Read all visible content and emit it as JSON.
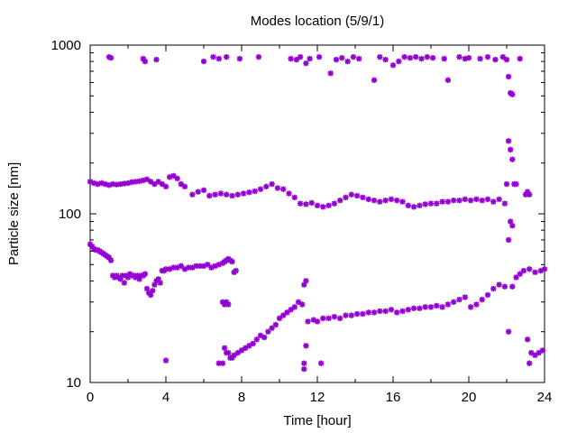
{
  "chart_data": {
    "type": "scatter",
    "title": "Modes location (5/9/1)",
    "xlabel": "Time [hour]",
    "ylabel": "Particle size [nm]",
    "xlim": [
      0,
      24
    ],
    "ylim": [
      10,
      1000
    ],
    "yscale": "log",
    "grid": false,
    "legend": "none",
    "xticks": [
      0,
      4,
      8,
      12,
      16,
      20,
      24
    ],
    "xtick_labels": [
      "0",
      "4",
      "8",
      "12",
      "16",
      "20",
      "24"
    ],
    "yticks": [
      10,
      100,
      1000
    ],
    "ytick_labels": [
      "10",
      "100",
      "1000"
    ],
    "marker_color": "#9400d3",
    "marker": "star",
    "series": [
      {
        "points": [
          [
            0.0,
            66
          ],
          [
            0.1,
            64
          ],
          [
            0.2,
            62
          ],
          [
            0.3,
            61
          ],
          [
            0.4,
            61
          ],
          [
            0.5,
            60
          ],
          [
            0.6,
            59
          ],
          [
            0.7,
            58
          ],
          [
            0.8,
            57
          ],
          [
            0.9,
            56
          ],
          [
            1.0,
            55
          ],
          [
            1.1,
            53
          ],
          [
            1.2,
            43
          ],
          [
            1.3,
            42
          ],
          [
            1.4,
            43
          ],
          [
            1.5,
            42
          ],
          [
            1.6,
            41
          ],
          [
            1.7,
            43
          ],
          [
            1.8,
            39
          ],
          [
            1.9,
            43
          ],
          [
            2.0,
            42
          ],
          [
            2.1,
            44
          ],
          [
            2.2,
            43
          ],
          [
            2.3,
            43
          ],
          [
            2.4,
            42
          ],
          [
            2.5,
            43
          ],
          [
            2.6,
            41
          ],
          [
            2.7,
            43
          ],
          [
            2.8,
            43
          ],
          [
            2.9,
            44
          ],
          [
            3.0,
            36
          ],
          [
            3.1,
            34
          ],
          [
            3.2,
            33
          ],
          [
            3.3,
            35
          ],
          [
            3.4,
            38
          ],
          [
            3.5,
            40
          ],
          [
            3.6,
            41
          ],
          [
            3.7,
            39
          ],
          [
            3.8,
            46
          ],
          [
            3.9,
            46
          ],
          [
            4.0,
            47
          ],
          [
            4.2,
            47
          ],
          [
            4.4,
            48
          ],
          [
            4.6,
            48
          ],
          [
            4.8,
            49
          ],
          [
            5.0,
            47
          ],
          [
            5.2,
            48
          ],
          [
            5.4,
            48
          ],
          [
            5.6,
            49
          ],
          [
            5.8,
            49
          ],
          [
            6.0,
            49
          ],
          [
            6.2,
            50
          ],
          [
            6.4,
            48
          ],
          [
            6.6,
            49
          ],
          [
            6.8,
            50
          ],
          [
            7.0,
            51
          ],
          [
            7.1,
            52
          ],
          [
            7.2,
            53
          ],
          [
            7.3,
            54
          ],
          [
            7.4,
            53
          ],
          [
            7.5,
            52
          ],
          [
            7.0,
            30
          ],
          [
            7.1,
            29
          ],
          [
            7.2,
            30
          ],
          [
            7.3,
            29
          ],
          [
            7.6,
            45
          ],
          [
            7.7,
            46
          ],
          [
            6.8,
            13
          ],
          [
            7.0,
            13
          ],
          [
            7.1,
            16
          ],
          [
            7.2,
            15
          ],
          [
            7.3,
            15
          ],
          [
            7.4,
            14
          ],
          [
            7.5,
            14
          ],
          [
            7.6,
            14.5
          ],
          [
            7.8,
            15
          ],
          [
            8.0,
            15.5
          ],
          [
            8.2,
            16
          ],
          [
            8.4,
            16.5
          ],
          [
            8.6,
            17
          ],
          [
            8.8,
            18
          ],
          [
            9.0,
            19
          ],
          [
            9.2,
            18.5
          ],
          [
            9.4,
            20
          ],
          [
            9.6,
            21
          ],
          [
            9.8,
            22
          ],
          [
            10.0,
            24
          ],
          [
            10.2,
            25
          ],
          [
            10.4,
            26
          ],
          [
            10.6,
            27
          ],
          [
            10.8,
            28
          ],
          [
            11.0,
            30
          ],
          [
            11.2,
            29
          ],
          [
            11.3,
            38
          ],
          [
            11.4,
            40
          ],
          [
            4.0,
            13.5
          ],
          [
            11.3,
            12
          ],
          [
            11.3,
            13
          ],
          [
            11.4,
            16.5
          ],
          [
            12.2,
            13
          ],
          [
            11.5,
            23
          ],
          [
            11.8,
            23.5
          ],
          [
            12.0,
            23
          ],
          [
            12.3,
            24
          ],
          [
            12.6,
            24
          ],
          [
            12.9,
            24.5
          ],
          [
            13.2,
            24
          ],
          [
            13.5,
            25
          ],
          [
            13.8,
            25
          ],
          [
            14.1,
            25.5
          ],
          [
            14.4,
            25.5
          ],
          [
            14.7,
            26
          ],
          [
            15.0,
            26
          ],
          [
            15.3,
            26.5
          ],
          [
            15.6,
            26.5
          ],
          [
            15.9,
            27
          ],
          [
            16.2,
            26
          ],
          [
            16.5,
            26.5
          ],
          [
            16.8,
            27
          ],
          [
            17.1,
            27.5
          ],
          [
            17.4,
            27.5
          ],
          [
            17.7,
            28
          ],
          [
            18.0,
            28
          ],
          [
            18.3,
            28.5
          ],
          [
            18.6,
            28
          ],
          [
            18.9,
            29
          ],
          [
            19.2,
            30
          ],
          [
            19.5,
            31
          ],
          [
            19.8,
            32
          ],
          [
            20.1,
            28
          ],
          [
            20.4,
            29
          ],
          [
            20.7,
            31
          ],
          [
            21.0,
            33
          ],
          [
            21.3,
            36
          ],
          [
            21.6,
            38
          ],
          [
            21.9,
            37
          ],
          [
            22.1,
            20
          ],
          [
            22.3,
            37
          ],
          [
            22.5,
            42
          ],
          [
            22.7,
            44
          ],
          [
            22.9,
            46
          ],
          [
            23.1,
            18
          ],
          [
            23.2,
            13
          ],
          [
            23.3,
            15
          ],
          [
            23.5,
            14.5
          ],
          [
            23.7,
            15
          ],
          [
            23.9,
            15.5
          ],
          [
            23.2,
            47
          ],
          [
            23.5,
            45
          ],
          [
            23.8,
            46
          ],
          [
            24.0,
            47
          ],
          [
            0.0,
            155
          ],
          [
            0.2,
            152
          ],
          [
            0.4,
            150
          ],
          [
            0.6,
            152
          ],
          [
            0.8,
            150
          ],
          [
            1.0,
            148
          ],
          [
            1.2,
            150
          ],
          [
            1.4,
            149
          ],
          [
            1.6,
            150
          ],
          [
            1.8,
            151
          ],
          [
            2.0,
            152
          ],
          [
            2.2,
            154
          ],
          [
            2.4,
            155
          ],
          [
            2.6,
            156
          ],
          [
            2.8,
            158
          ],
          [
            3.0,
            160
          ],
          [
            3.2,
            155
          ],
          [
            3.4,
            150
          ],
          [
            3.6,
            155
          ],
          [
            3.8,
            150
          ],
          [
            4.0,
            145
          ],
          [
            4.2,
            165
          ],
          [
            4.4,
            168
          ],
          [
            4.6,
            162
          ],
          [
            4.8,
            150
          ],
          [
            5.0,
            145
          ],
          [
            5.4,
            130
          ],
          [
            5.7,
            135
          ],
          [
            6.0,
            138
          ],
          [
            6.3,
            128
          ],
          [
            6.6,
            130
          ],
          [
            6.9,
            132
          ],
          [
            7.2,
            130
          ],
          [
            7.5,
            128
          ],
          [
            7.8,
            130
          ],
          [
            8.1,
            132
          ],
          [
            8.4,
            134
          ],
          [
            8.7,
            136
          ],
          [
            9.0,
            140
          ],
          [
            9.3,
            145
          ],
          [
            9.6,
            150
          ],
          [
            9.9,
            142
          ],
          [
            10.2,
            140
          ],
          [
            10.5,
            132
          ],
          [
            10.8,
            125
          ],
          [
            11.1,
            115
          ],
          [
            11.4,
            114
          ],
          [
            11.7,
            116
          ],
          [
            12.0,
            112
          ],
          [
            12.3,
            110
          ],
          [
            12.6,
            112
          ],
          [
            12.9,
            115
          ],
          [
            13.2,
            120
          ],
          [
            13.5,
            125
          ],
          [
            13.8,
            130
          ],
          [
            14.1,
            128
          ],
          [
            14.4,
            125
          ],
          [
            14.7,
            122
          ],
          [
            15.0,
            120
          ],
          [
            15.3,
            118
          ],
          [
            15.6,
            120
          ],
          [
            15.9,
            122
          ],
          [
            16.2,
            120
          ],
          [
            16.5,
            118
          ],
          [
            16.8,
            112
          ],
          [
            17.1,
            110
          ],
          [
            17.4,
            112
          ],
          [
            17.7,
            114
          ],
          [
            18.0,
            115
          ],
          [
            18.3,
            115
          ],
          [
            18.6,
            118
          ],
          [
            18.9,
            118
          ],
          [
            19.2,
            120
          ],
          [
            19.5,
            120
          ],
          [
            19.8,
            122
          ],
          [
            20.1,
            120
          ],
          [
            20.4,
            122
          ],
          [
            20.7,
            120
          ],
          [
            21.0,
            122
          ],
          [
            21.3,
            118
          ],
          [
            21.6,
            122
          ],
          [
            21.9,
            115
          ],
          [
            22.0,
            150
          ],
          [
            22.1,
            270
          ],
          [
            22.2,
            240
          ],
          [
            22.3,
            210
          ],
          [
            22.4,
            150
          ],
          [
            22.5,
            150
          ],
          [
            22.1,
            70
          ],
          [
            22.2,
            90
          ],
          [
            22.3,
            85
          ],
          [
            23.0,
            130
          ],
          [
            23.1,
            135
          ],
          [
            23.2,
            130
          ],
          [
            1.0,
            850
          ],
          [
            1.1,
            840
          ],
          [
            2.8,
            830
          ],
          [
            2.9,
            800
          ],
          [
            3.5,
            820
          ],
          [
            6.0,
            800
          ],
          [
            6.5,
            850
          ],
          [
            6.8,
            830
          ],
          [
            7.2,
            850
          ],
          [
            7.9,
            830
          ],
          [
            8.9,
            850
          ],
          [
            10.6,
            830
          ],
          [
            10.9,
            820
          ],
          [
            11.1,
            850
          ],
          [
            11.4,
            780
          ],
          [
            11.6,
            830
          ],
          [
            12.1,
            850
          ],
          [
            12.7,
            680
          ],
          [
            13.0,
            820
          ],
          [
            13.3,
            840
          ],
          [
            13.6,
            800
          ],
          [
            13.9,
            850
          ],
          [
            14.2,
            830
          ],
          [
            15.0,
            620
          ],
          [
            15.3,
            850
          ],
          [
            15.6,
            820
          ],
          [
            16.0,
            760
          ],
          [
            16.3,
            800
          ],
          [
            16.6,
            850
          ],
          [
            16.9,
            840
          ],
          [
            17.2,
            850
          ],
          [
            17.5,
            830
          ],
          [
            17.8,
            850
          ],
          [
            18.1,
            840
          ],
          [
            18.7,
            830
          ],
          [
            18.9,
            620
          ],
          [
            19.5,
            850
          ],
          [
            19.8,
            830
          ],
          [
            20.0,
            840
          ],
          [
            20.6,
            830
          ],
          [
            21.0,
            850
          ],
          [
            21.4,
            820
          ],
          [
            21.8,
            850
          ],
          [
            22.0,
            820
          ],
          [
            22.1,
            650
          ],
          [
            22.2,
            520
          ],
          [
            22.3,
            510
          ],
          [
            22.7,
            830
          ]
        ]
      }
    ]
  }
}
